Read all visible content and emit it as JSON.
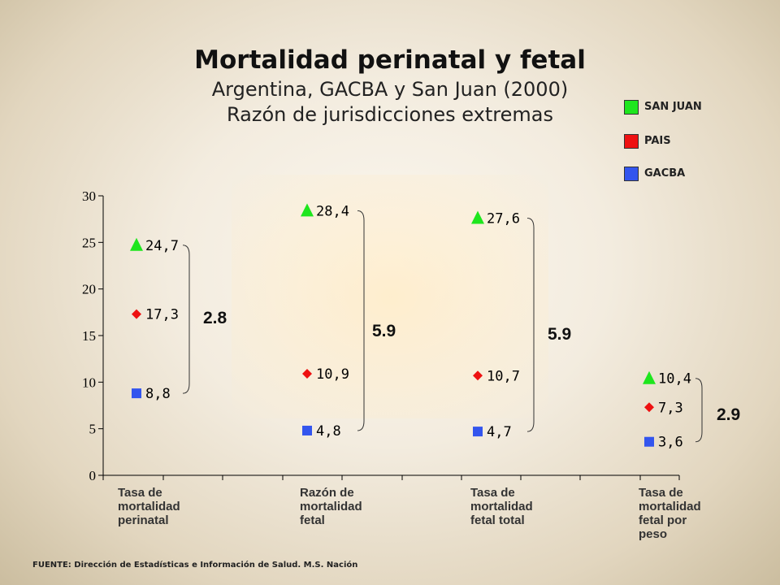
{
  "slide": {
    "title": "Mortalidad perinatal y fetal",
    "subtitle1": "Argentina, GACBA y San Juan (2000)",
    "subtitle2": "Razón de jurisdicciones extremas",
    "source": "FUENTE: Dirección de Estadísticas e Información de Salud. M.S. Nación"
  },
  "legend": [
    {
      "label": "SAN JUAN",
      "color": "#1ee61e"
    },
    {
      "label": "PAIS",
      "color": "#ee1111"
    },
    {
      "label": "GACBA",
      "color": "#3355ee"
    }
  ],
  "chart_data": {
    "type": "scatter",
    "categories": [
      "Tasa de mortalidad perinatal",
      "Razón de mortalidad fetal",
      "Tasa de mortalidad fetal total",
      "Tasa de mortalidad fetal por peso"
    ],
    "category_lines": [
      [
        "Tasa de",
        "mortalidad",
        "perinatal"
      ],
      [
        "Razón de",
        "mortalidad",
        "fetal"
      ],
      [
        "Tasa de",
        "mortalidad",
        "fetal total"
      ],
      [
        "Tasa de",
        "mortalidad",
        "fetal por",
        "peso"
      ]
    ],
    "series": [
      {
        "name": "SAN JUAN",
        "marker": "triangle",
        "color": "#1ee61e",
        "values": [
          24.7,
          28.4,
          27.6,
          10.4
        ],
        "labels": [
          "24,7",
          "28,4",
          "27,6",
          "10,4"
        ]
      },
      {
        "name": "PAIS",
        "marker": "diamond",
        "color": "#ee1111",
        "values": [
          17.3,
          10.9,
          10.7,
          7.3
        ],
        "labels": [
          "17,3",
          "10,9",
          "10,7",
          "7,3"
        ]
      },
      {
        "name": "GACBA",
        "marker": "square",
        "color": "#3355ee",
        "values": [
          8.8,
          4.8,
          4.7,
          3.6
        ],
        "labels": [
          "8,8",
          "4,8",
          "4,7",
          "3,6"
        ]
      }
    ],
    "ratios": [
      "2.8",
      "5.9",
      "5.9",
      "2.9"
    ],
    "ylim": [
      0,
      30
    ],
    "yticks": [
      0,
      5,
      10,
      15,
      20,
      25,
      30
    ],
    "grid": false
  }
}
